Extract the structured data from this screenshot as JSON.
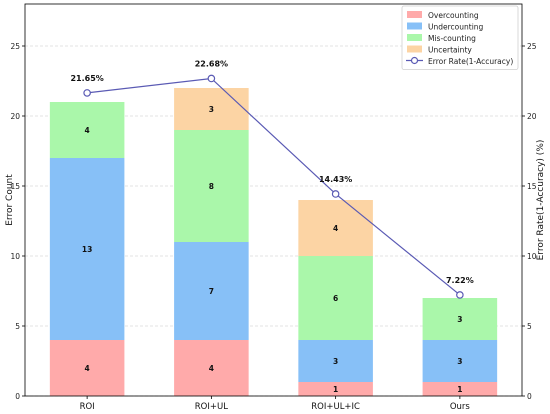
{
  "chart_data": {
    "type": "bar",
    "stacked": true,
    "categories": [
      "ROI",
      "ROI+UL",
      "ROI+UL+IC",
      "Ours"
    ],
    "series": [
      {
        "name": "Overcounting",
        "color": "#ffaaaa",
        "values": [
          4,
          4,
          1,
          1
        ]
      },
      {
        "name": "Undercounting",
        "color": "#87c0f7",
        "values": [
          13,
          7,
          3,
          3
        ]
      },
      {
        "name": "Mis-counting",
        "color": "#aaf7aa",
        "values": [
          4,
          8,
          6,
          3
        ]
      },
      {
        "name": "Uncertainty",
        "color": "#fcd4a4",
        "values": [
          0,
          3,
          4,
          0
        ]
      }
    ],
    "line_series": {
      "name": "Error Rate(1-Accuracy)",
      "color": "#5a5ab4",
      "values": [
        21.65,
        22.68,
        14.43,
        7.22
      ],
      "labels": [
        "21.65%",
        "22.68%",
        "14.43%",
        "7.22%"
      ]
    },
    "ylabel": "Error Count",
    "y2label": "Error Rate(1-Accuracy) (%)",
    "ylim": [
      0,
      28
    ],
    "y2lim": [
      0,
      28
    ],
    "yticks": [
      0,
      5,
      10,
      15,
      20,
      25
    ],
    "grid": true,
    "legend_position": "top-right"
  }
}
